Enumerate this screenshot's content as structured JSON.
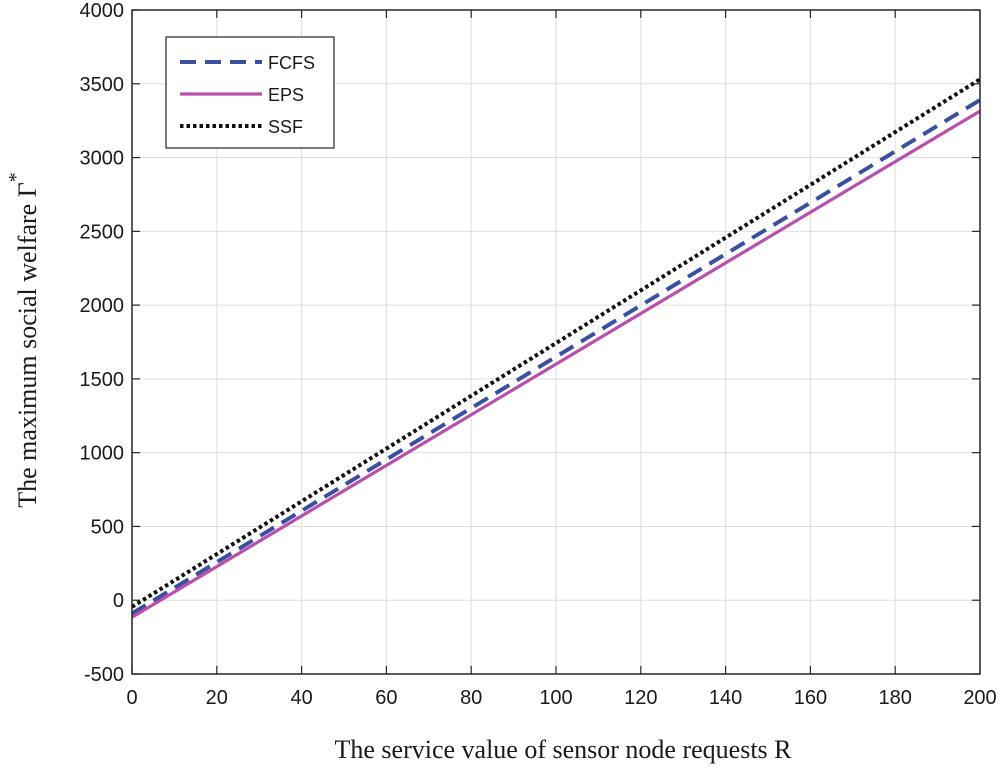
{
  "chart_data": {
    "type": "line",
    "title": "",
    "xlabel": "The service value of sensor node requests R",
    "ylabel": "The maximum social welfare Γ",
    "ylabel_superscript": "*",
    "xlim": [
      0,
      200
    ],
    "ylim": [
      -500,
      4000
    ],
    "xticks": [
      0,
      20,
      40,
      60,
      80,
      100,
      120,
      140,
      160,
      180,
      200
    ],
    "yticks": [
      -500,
      0,
      500,
      1000,
      1500,
      2000,
      2500,
      3000,
      3500,
      4000
    ],
    "grid": true,
    "legend_position": "top-left",
    "series": [
      {
        "name": "FCFS",
        "style": "dashed",
        "color": "#3a4fa0",
        "x": [
          0,
          200
        ],
        "y": [
          -90,
          3390
        ]
      },
      {
        "name": "EPS",
        "style": "solid",
        "color": "#b94fad",
        "x": [
          0,
          200
        ],
        "y": [
          -115,
          3315
        ]
      },
      {
        "name": "SSF",
        "style": "dotted",
        "color": "#111111",
        "x": [
          0,
          200
        ],
        "y": [
          -45,
          3530
        ]
      }
    ]
  }
}
